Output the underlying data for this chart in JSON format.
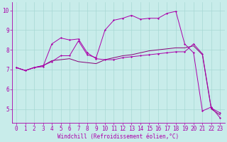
{
  "xlabel": "Windchill (Refroidissement éolien,°C)",
  "xlim": [
    -0.5,
    23.5
  ],
  "ylim": [
    4.3,
    10.4
  ],
  "xticks": [
    0,
    1,
    2,
    3,
    4,
    5,
    6,
    7,
    8,
    9,
    10,
    11,
    12,
    13,
    14,
    15,
    16,
    17,
    18,
    19,
    20,
    21,
    22,
    23
  ],
  "yticks": [
    5,
    6,
    7,
    8,
    9,
    10
  ],
  "bg_color": "#c8ecea",
  "grid_color": "#a8d8d4",
  "line_color": "#aa00aa",
  "line_color2": "#880077",
  "line1_x": [
    0,
    1,
    2,
    3,
    4,
    5,
    6,
    7,
    8,
    9,
    10,
    11,
    12,
    13,
    14,
    15,
    16,
    17,
    18,
    19,
    20,
    21,
    22,
    23
  ],
  "line1_y": [
    7.1,
    6.95,
    7.1,
    7.15,
    8.3,
    8.6,
    8.5,
    8.55,
    7.85,
    7.55,
    7.5,
    7.5,
    7.6,
    7.65,
    7.7,
    7.75,
    7.8,
    7.85,
    7.9,
    7.9,
    8.3,
    7.8,
    5.05,
    4.8
  ],
  "line2_x": [
    0,
    1,
    2,
    3,
    4,
    5,
    6,
    7,
    8,
    9,
    10,
    11,
    12,
    13,
    14,
    15,
    16,
    17,
    18,
    19,
    20,
    21,
    22,
    23
  ],
  "line2_y": [
    7.1,
    6.95,
    7.1,
    7.2,
    7.45,
    7.5,
    7.55,
    7.4,
    7.35,
    7.3,
    7.5,
    7.6,
    7.7,
    7.75,
    7.85,
    7.95,
    8.0,
    8.05,
    8.1,
    8.1,
    8.2,
    7.75,
    5.0,
    4.7
  ],
  "line3_x": [
    0,
    1,
    2,
    3,
    4,
    5,
    6,
    7,
    8,
    9,
    10,
    11,
    12,
    13,
    14,
    15,
    16,
    17,
    18,
    19,
    20,
    21,
    22,
    23
  ],
  "line3_y": [
    7.1,
    6.95,
    7.1,
    7.2,
    7.4,
    7.7,
    7.7,
    8.45,
    7.75,
    7.6,
    9.0,
    9.5,
    9.6,
    9.75,
    9.55,
    9.6,
    9.6,
    9.85,
    9.95,
    8.3,
    7.85,
    4.9,
    5.1,
    4.55
  ],
  "font_size": 5.5,
  "tick_font_size": 5.5,
  "marker": "D",
  "marker_size": 1.5,
  "lw": 0.7
}
